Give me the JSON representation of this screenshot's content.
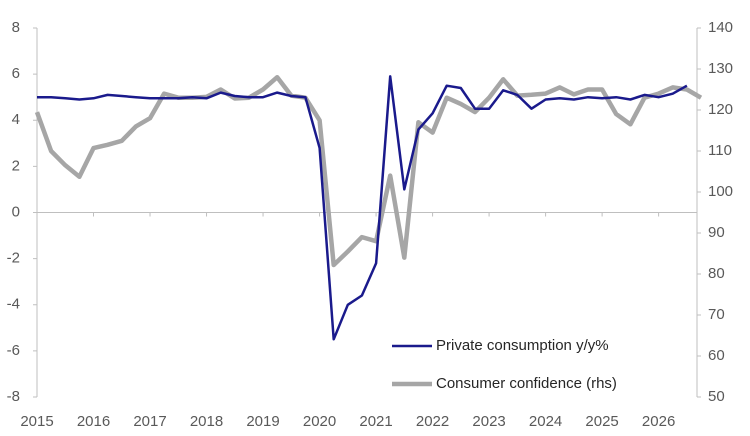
{
  "chart_data": {
    "type": "line",
    "x": [
      2015,
      2015.25,
      2015.5,
      2015.75,
      2016,
      2016.25,
      2016.5,
      2016.75,
      2017,
      2017.25,
      2017.5,
      2017.75,
      2018,
      2018.25,
      2018.5,
      2018.75,
      2019,
      2019.25,
      2019.5,
      2019.75,
      2020,
      2020.25,
      2020.5,
      2020.75,
      2021,
      2021.25,
      2021.5,
      2021.75,
      2022,
      2022.25,
      2022.5,
      2022.75,
      2023,
      2023.25,
      2023.5,
      2023.75,
      2024,
      2024.25,
      2024.5,
      2024.75,
      2025,
      2025.25,
      2025.5,
      2025.75,
      2026,
      2026.25,
      2026.5,
      2026.75
    ],
    "series": [
      {
        "name": "Private consumption y/y%",
        "color": "#1a1a8c",
        "values": [
          5.0,
          5.0,
          4.95,
          4.9,
          4.95,
          5.1,
          5.05,
          5.0,
          4.95,
          4.95,
          4.95,
          5.0,
          4.95,
          5.2,
          5.05,
          5.0,
          5.0,
          5.2,
          5.05,
          5.0,
          2.8,
          -5.5,
          -4.0,
          -3.6,
          -2.2,
          5.9,
          1.0,
          3.6,
          4.3,
          5.5,
          5.4,
          4.5,
          4.5,
          5.3,
          5.1,
          4.5,
          4.9,
          4.95,
          4.9,
          5.0,
          4.95,
          5.0,
          4.9,
          5.1,
          5.0,
          5.15,
          5.5,
          null
        ]
      },
      {
        "name": "Consumer confidence (rhs)",
        "color": "#a6a6a6",
        "axis": "y2",
        "values": [
          119.5,
          110,
          106.5,
          103.7,
          110.7,
          111.5,
          112.5,
          116,
          118,
          124,
          123,
          123,
          123.2,
          125,
          122.8,
          123,
          125,
          128,
          123.5,
          123,
          117.5,
          82.2,
          85.5,
          89,
          88,
          104,
          84,
          117,
          114.5,
          123,
          121.5,
          119.5,
          123,
          127.5,
          123.5,
          123.7,
          124,
          125.5,
          123.8,
          125,
          125,
          119,
          116.5,
          123,
          124,
          125.5,
          125,
          123
        ]
      }
    ],
    "xlim": [
      2015,
      2026.75
    ],
    "xticks": [
      2015,
      2016,
      2017,
      2018,
      2019,
      2020,
      2021,
      2022,
      2023,
      2024,
      2025,
      2026
    ],
    "ylim": [
      -8,
      8
    ],
    "yticks": [
      -8,
      -6,
      -4,
      -2,
      0,
      2,
      4,
      6,
      8
    ],
    "y2lim": [
      50,
      140
    ],
    "y2ticks": [
      50,
      60,
      70,
      80,
      90,
      100,
      110,
      120,
      130,
      140
    ],
    "legend": "lower right"
  }
}
